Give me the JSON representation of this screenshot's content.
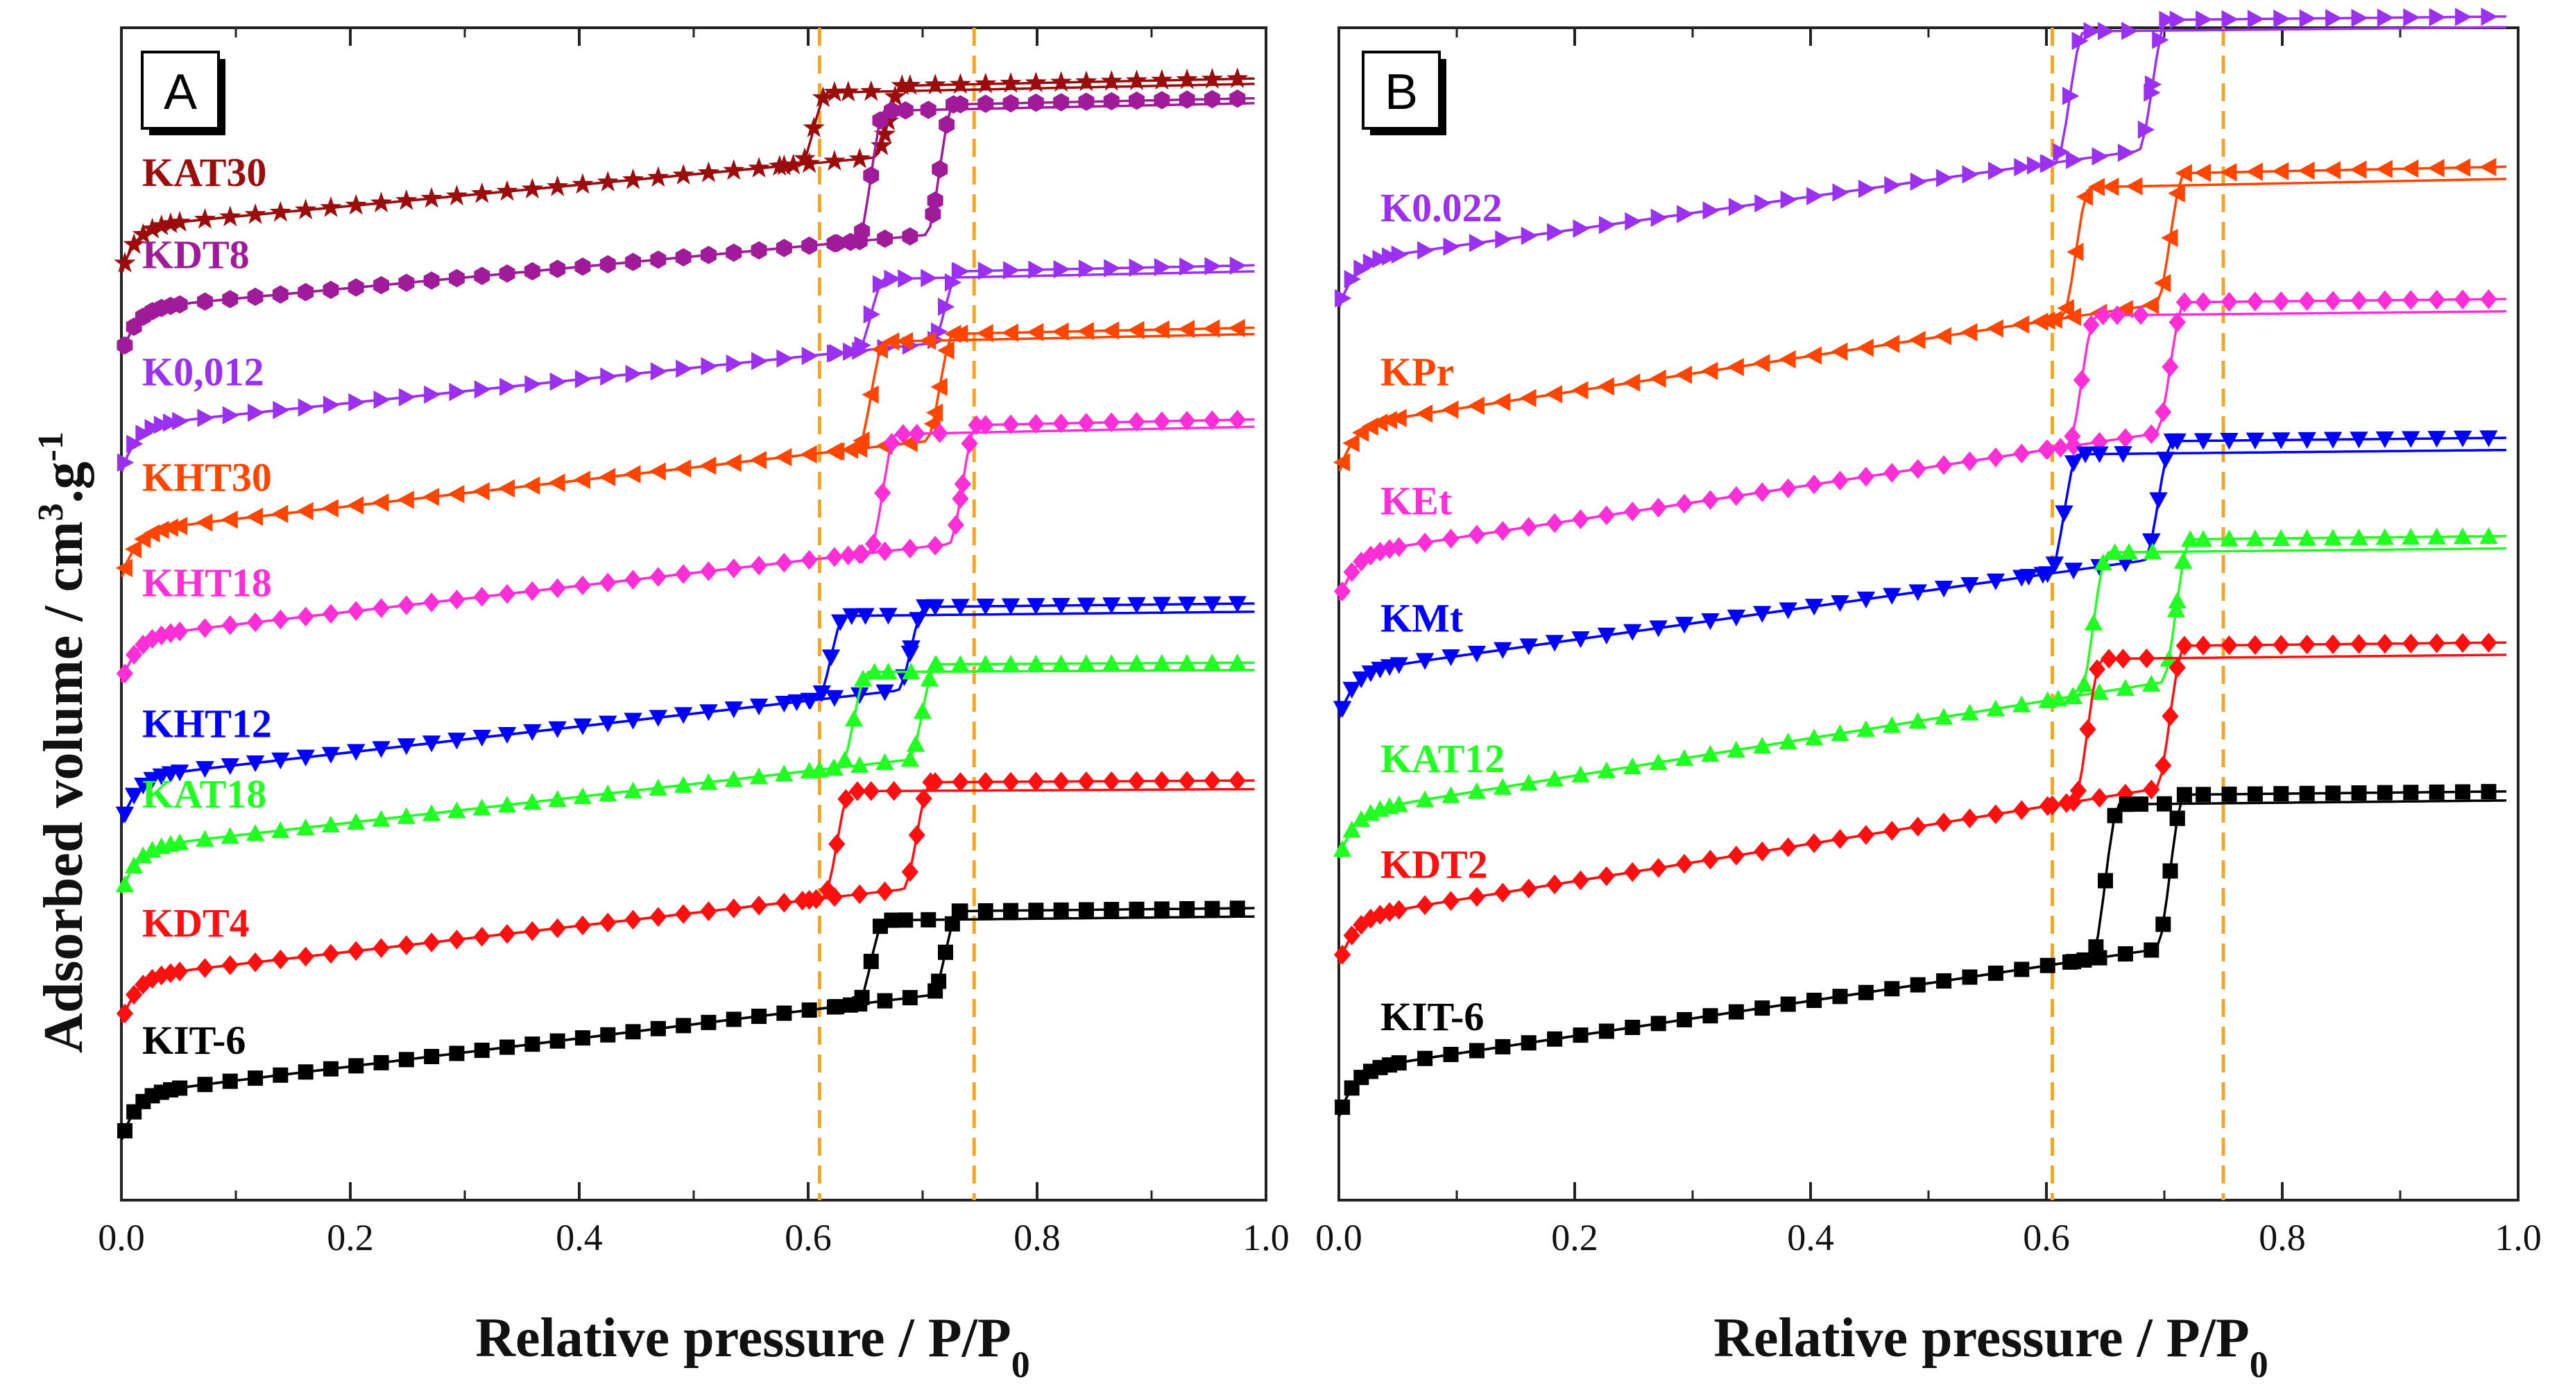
{
  "figure": {
    "y_axis_title": "Adsorbed volume / cm",
    "y_axis_title_sup1": "3",
    "y_axis_title_mid": ".g",
    "y_axis_title_sup2": "-1",
    "x_axis_title": "Relative pressure / P/P",
    "x_axis_title_sub": "0"
  },
  "chart_data": [
    {
      "type": "line",
      "panel": "A",
      "xlabel": "Relative pressure / P/P0",
      "ylabel": "Adsorbed volume / cm3.g-1",
      "xlim": [
        0.0,
        1.0
      ],
      "x_ticks": [
        "0.0",
        "0.2",
        "0.4",
        "0.6",
        "0.8",
        "1.0"
      ],
      "y_ticks_labeled": false,
      "ylim": [
        0,
        100
      ],
      "reference_lines": [
        0.61,
        0.745
      ],
      "series": [
        {
          "name": "KAT30",
          "color": "#9b0d0d",
          "marker": "star",
          "base": 79,
          "slope": 9,
          "adsorption_step": 0.67,
          "desorption_step": 0.605,
          "step_height": 6,
          "top_slope": 2
        },
        {
          "name": "KDT8",
          "color": "#a01b9a",
          "marker": "hexagon",
          "base": 72,
          "slope": 9,
          "adsorption_step": 0.715,
          "desorption_step": 0.655,
          "step_height": 11,
          "top_slope": 2
        },
        {
          "name": "K0,012",
          "color": "#9b30f0",
          "marker": "triangle-right",
          "base": 62,
          "slope": 10,
          "adsorption_step": 0.72,
          "desorption_step": 0.655,
          "step_height": 6,
          "top_slope": 2
        },
        {
          "name": "KHT30",
          "color": "#ff4500",
          "marker": "triangle-left",
          "base": 53,
          "slope": 11,
          "adsorption_step": 0.715,
          "desorption_step": 0.655,
          "step_height": 9,
          "top_slope": 2
        },
        {
          "name": "KHT18",
          "color": "#ff2fd8",
          "marker": "diamond",
          "base": 44,
          "slope": 11,
          "adsorption_step": 0.735,
          "desorption_step": 0.665,
          "step_height": 10,
          "top_slope": 2
        },
        {
          "name": "KHT12",
          "color": "#0000ff",
          "marker": "triangle-down",
          "base": 32,
          "slope": 11,
          "adsorption_step": 0.69,
          "desorption_step": 0.62,
          "step_height": 7,
          "top_slope": 1
        },
        {
          "name": "KAT18",
          "color": "#22ff22",
          "marker": "triangle-up",
          "base": 26,
          "slope": 11,
          "adsorption_step": 0.7,
          "desorption_step": 0.64,
          "step_height": 8,
          "top_slope": 0.5
        },
        {
          "name": "KDT4",
          "color": "#ff1010",
          "marker": "diamond",
          "base": 15,
          "slope": 11,
          "adsorption_step": 0.695,
          "desorption_step": 0.625,
          "step_height": 9,
          "top_slope": 0.5
        },
        {
          "name": "KIT-6",
          "color": "#000000",
          "marker": "square",
          "base": 5,
          "slope": 12,
          "adsorption_step": 0.72,
          "desorption_step": 0.655,
          "step_height": 7,
          "top_slope": 1
        }
      ]
    },
    {
      "type": "line",
      "panel": "B",
      "xlabel": "Relative pressure / P/P0",
      "ylabel": "Adsorbed volume / cm3.g-1",
      "xlim": [
        0.0,
        1.0
      ],
      "x_ticks": [
        "0.0",
        "0.2",
        "0.4",
        "0.6",
        "0.8",
        "1.0"
      ],
      "y_ticks_labeled": false,
      "ylim": [
        0,
        100
      ],
      "reference_lines": [
        0.605,
        0.75
      ],
      "series": [
        {
          "name": "K0.022",
          "color": "#9b30f0",
          "marker": "triangle-right",
          "base": 76,
          "slope": 14,
          "adsorption_step": 0.69,
          "desorption_step": 0.62,
          "step_height": 11,
          "top_slope": 1
        },
        {
          "name": "KPr",
          "color": "#ff4500",
          "marker": "triangle-left",
          "base": 62,
          "slope": 15,
          "adsorption_step": 0.705,
          "desorption_step": 0.625,
          "step_height": 11,
          "top_slope": 2
        },
        {
          "name": "KEt",
          "color": "#ff2fd8",
          "marker": "diamond",
          "base": 51,
          "slope": 15,
          "adsorption_step": 0.705,
          "desorption_step": 0.63,
          "step_height": 11,
          "top_slope": 1
        },
        {
          "name": "KMt",
          "color": "#0000ff",
          "marker": "triangle-down",
          "base": 41,
          "slope": 14,
          "adsorption_step": 0.695,
          "desorption_step": 0.615,
          "step_height": 10,
          "top_slope": 1
        },
        {
          "name": "KAT12",
          "color": "#22ff22",
          "marker": "triangle-up",
          "base": 29,
          "slope": 16,
          "adsorption_step": 0.71,
          "desorption_step": 0.64,
          "step_height": 12,
          "top_slope": 1
        },
        {
          "name": "KDT2",
          "color": "#ff1010",
          "marker": "diamond",
          "base": 20,
          "slope": 16,
          "adsorption_step": 0.705,
          "desorption_step": 0.635,
          "step_height": 12,
          "top_slope": 1
        },
        {
          "name": "KIT-6",
          "color": "#000000",
          "marker": "square",
          "base": 7,
          "slope": 15,
          "adsorption_step": 0.705,
          "desorption_step": 0.65,
          "step_height": 13,
          "top_slope": 1
        }
      ]
    }
  ]
}
